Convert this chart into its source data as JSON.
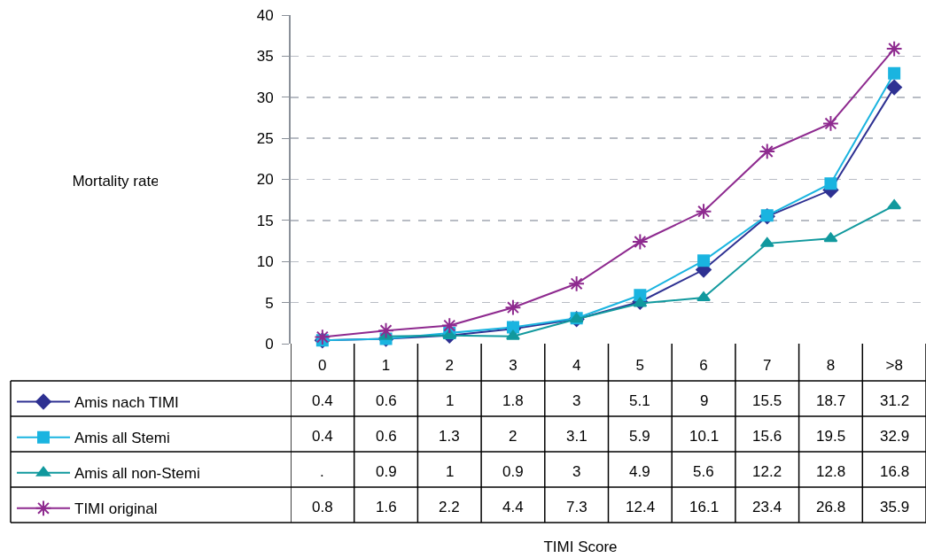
{
  "chart_data": {
    "type": "line",
    "annotations": [
      "Mortality rate",
      "TIMI Score"
    ],
    "categories": [
      "0",
      "1",
      "2",
      "3",
      "4",
      "5",
      "6",
      "7",
      "8",
      ">8"
    ],
    "ylim": [
      0,
      40
    ],
    "yticks": [
      0,
      5,
      10,
      15,
      20,
      25,
      30,
      35,
      40
    ],
    "grid": "y",
    "legend": "bottom left",
    "series": [
      {
        "name": "Amis nach TIMI",
        "color": "#2e3192",
        "marker": "diamond",
        "values": [
          0.4,
          0.6,
          1,
          1.8,
          3,
          5.1,
          9,
          15.5,
          18.7,
          31.2
        ],
        "value_labels": [
          "0.4",
          "0.6",
          "1",
          "1.8",
          "3",
          "5.1",
          "9",
          "15.5",
          "18.7",
          "31.2"
        ]
      },
      {
        "name": "Amis all Stemi",
        "color": "#1ab4e0",
        "marker": "square",
        "values": [
          0.4,
          0.6,
          1.3,
          2,
          3.1,
          5.9,
          10.1,
          15.6,
          19.5,
          32.9
        ],
        "value_labels": [
          "0.4",
          "0.6",
          "1.3",
          "2",
          "3.1",
          "5.9",
          "10.1",
          "15.6",
          "19.5",
          "32.9"
        ]
      },
      {
        "name": "Amis all non-Stemi",
        "color": "#11999e",
        "marker": "triangle",
        "values": [
          null,
          0.9,
          1,
          0.9,
          3,
          4.9,
          5.6,
          12.2,
          12.8,
          16.8
        ],
        "value_labels": [
          ".",
          "0.9",
          "1",
          "0.9",
          "3",
          "4.9",
          "5.6",
          "12.2",
          "12.8",
          "16.8"
        ]
      },
      {
        "name": "TIMI original",
        "color": "#8e2a8f",
        "marker": "cross",
        "values": [
          0.8,
          1.6,
          2.2,
          4.4,
          7.3,
          12.4,
          16.1,
          23.4,
          26.8,
          35.9
        ],
        "value_labels": [
          "0.8",
          "1.6",
          "2.2",
          "4.4",
          "7.3",
          "12.4",
          "16.1",
          "23.4",
          "26.8",
          "35.9"
        ]
      }
    ]
  }
}
